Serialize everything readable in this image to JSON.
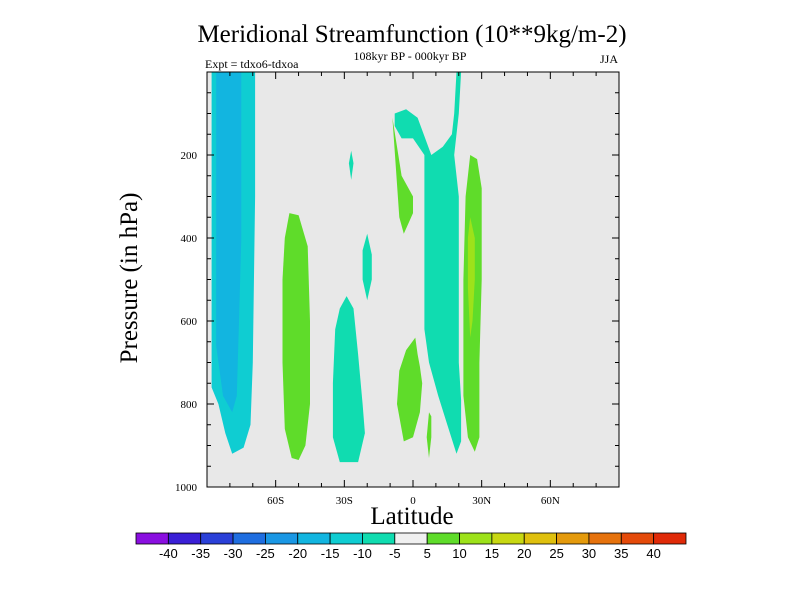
{
  "chart_data": {
    "type": "contour",
    "title": "Meridional Streamfunction (10**9kg/m-2)",
    "subtitle": "108kyr BP - 000kyr BP",
    "left_label": "Expt = tdxo6-tdxoa",
    "right_label": "JJA",
    "xlabel": "Latitude",
    "ylabel": "Pressure (in hPa)",
    "xlim": [
      -90,
      90
    ],
    "ylim": [
      0,
      1000
    ],
    "y_reversed": true,
    "x_ticks": [
      {
        "value": -60,
        "label": "60S"
      },
      {
        "value": -30,
        "label": "30S"
      },
      {
        "value": 0,
        "label": "0"
      },
      {
        "value": 30,
        "label": "30N"
      },
      {
        "value": 60,
        "label": "60N"
      }
    ],
    "y_ticks": [
      {
        "value": 200,
        "label": "200"
      },
      {
        "value": 400,
        "label": "400"
      },
      {
        "value": 600,
        "label": "600"
      },
      {
        "value": 800,
        "label": "800"
      },
      {
        "value": 1000,
        "label": "1000"
      }
    ],
    "background_color": "#e8e8e8",
    "colorbar": {
      "labels": [
        "-40",
        "-35",
        "-30",
        "-25",
        "-20",
        "-15",
        "-10",
        "-5",
        "5",
        "10",
        "15",
        "20",
        "25",
        "30",
        "35",
        "40"
      ],
      "colors": [
        "#8a0fe0",
        "#3a1fd6",
        "#2a40d8",
        "#1f6ee0",
        "#1a97e4",
        "#12b5e0",
        "#0fcdd2",
        "#10dcb0",
        "#f0f0f0",
        "#5fdc2a",
        "#9de21a",
        "#c8d812",
        "#dfc00e",
        "#e49a0c",
        "#e6720c",
        "#e44a0a",
        "#e02a08"
      ]
    },
    "regions": [
      {
        "name": "negative cell south high latitudes",
        "level": "-15 to -10",
        "color": "#0fcdd2",
        "points": [
          [
            -88,
            0
          ],
          [
            -69,
            0
          ],
          [
            -69,
            300
          ],
          [
            -70,
            700
          ],
          [
            -71,
            850
          ],
          [
            -74,
            905
          ],
          [
            -79,
            920
          ],
          [
            -82,
            870
          ],
          [
            -85,
            800
          ],
          [
            -88,
            760
          ]
        ]
      },
      {
        "name": "negative core south high latitudes",
        "level": "-20 to -15",
        "color": "#12b5e0",
        "points": [
          [
            -86,
            0
          ],
          [
            -75,
            0
          ],
          [
            -75,
            400
          ],
          [
            -76,
            600
          ],
          [
            -77,
            780
          ],
          [
            -79,
            820
          ],
          [
            -83,
            780
          ],
          [
            -86,
            660
          ]
        ]
      },
      {
        "name": "positive cell southern midlatitudes",
        "level": "5 to 10",
        "color": "#5fdc2a",
        "points": [
          [
            -54,
            340
          ],
          [
            -50,
            345
          ],
          [
            -46,
            420
          ],
          [
            -45,
            600
          ],
          [
            -45,
            800
          ],
          [
            -47,
            900
          ],
          [
            -50,
            935
          ],
          [
            -53,
            930
          ],
          [
            -56,
            860
          ],
          [
            -57,
            700
          ],
          [
            -57,
            500
          ],
          [
            -56,
            400
          ]
        ]
      },
      {
        "name": "negative cell southern subtropics",
        "level": "-10 to -5",
        "color": "#10dcb0",
        "points": [
          [
            -29,
            540
          ],
          [
            -26,
            570
          ],
          [
            -24,
            680
          ],
          [
            -22,
            800
          ],
          [
            -21,
            870
          ],
          [
            -24,
            940
          ],
          [
            -32,
            940
          ],
          [
            -35,
            880
          ],
          [
            -35,
            750
          ],
          [
            -34,
            620
          ],
          [
            -32,
            570
          ]
        ]
      },
      {
        "name": "small negative patch upper",
        "level": "-10 to -5",
        "color": "#10dcb0",
        "points": [
          [
            -27,
            190
          ],
          [
            -26,
            220
          ],
          [
            -27,
            260
          ],
          [
            -28,
            220
          ]
        ]
      },
      {
        "name": "small negative patch middle",
        "level": "-10 to -5",
        "color": "#10dcb0",
        "points": [
          [
            -20,
            390
          ],
          [
            -18,
            440
          ],
          [
            -18,
            500
          ],
          [
            -20,
            550
          ],
          [
            -22,
            500
          ],
          [
            -22,
            430
          ]
        ]
      },
      {
        "name": "small positive patch upper tropics",
        "level": "5 to 10",
        "color": "#5fdc2a",
        "points": [
          [
            -9,
            110
          ],
          [
            -6,
            350
          ],
          [
            -4,
            390
          ],
          [
            0,
            340
          ],
          [
            0,
            300
          ],
          [
            -5,
            250
          ]
        ]
      },
      {
        "name": "positive cell lower tropics",
        "level": "5 to 10",
        "color": "#5fdc2a",
        "points": [
          [
            3,
            710
          ],
          [
            4,
            750
          ],
          [
            3,
            820
          ],
          [
            0,
            880
          ],
          [
            -4,
            890
          ],
          [
            -7,
            800
          ],
          [
            -6,
            720
          ],
          [
            -3,
            670
          ],
          [
            1,
            640
          ],
          [
            2,
            680
          ]
        ]
      },
      {
        "name": "thin positive sliver tropics",
        "level": "5 to 10",
        "color": "#5fdc2a",
        "points": [
          [
            7,
            820
          ],
          [
            8,
            830
          ],
          [
            8,
            880
          ],
          [
            7,
            930
          ],
          [
            6,
            880
          ]
        ]
      },
      {
        "name": "negative cell northern subtropics",
        "level": "-10 to -5",
        "color": "#10dcb0",
        "points": [
          [
            19,
            0
          ],
          [
            21,
            0
          ],
          [
            20,
            100
          ],
          [
            18,
            200
          ],
          [
            20,
            300
          ],
          [
            20,
            500
          ],
          [
            20,
            700
          ],
          [
            21,
            790
          ],
          [
            21,
            890
          ],
          [
            19,
            920
          ],
          [
            15,
            850
          ],
          [
            11,
            780
          ],
          [
            7,
            700
          ],
          [
            5,
            620
          ],
          [
            5,
            450
          ],
          [
            5,
            350
          ],
          [
            5,
            250
          ],
          [
            5,
            200
          ],
          [
            0,
            160
          ],
          [
            -5,
            160
          ],
          [
            -8,
            130
          ],
          [
            -8,
            100
          ],
          [
            -3,
            90
          ],
          [
            2,
            110
          ],
          [
            8,
            200
          ],
          [
            13,
            180
          ],
          [
            17,
            150
          ],
          [
            18,
            100
          ]
        ]
      },
      {
        "name": "positive cell northern subtropics",
        "level": "5 to 10",
        "color": "#5fdc2a",
        "points": [
          [
            25,
            200
          ],
          [
            28,
            210
          ],
          [
            30,
            280
          ],
          [
            30,
            500
          ],
          [
            29,
            700
          ],
          [
            29,
            880
          ],
          [
            27,
            915
          ],
          [
            24,
            880
          ],
          [
            22,
            780
          ],
          [
            22,
            500
          ],
          [
            23,
            300
          ]
        ]
      },
      {
        "name": "positive core northern subtropics",
        "level": "10 to 15",
        "color": "#9de21a",
        "points": [
          [
            25,
            350
          ],
          [
            27,
            400
          ],
          [
            27,
            500
          ],
          [
            26,
            600
          ],
          [
            25,
            640
          ],
          [
            24,
            520
          ],
          [
            24,
            400
          ]
        ]
      }
    ]
  }
}
